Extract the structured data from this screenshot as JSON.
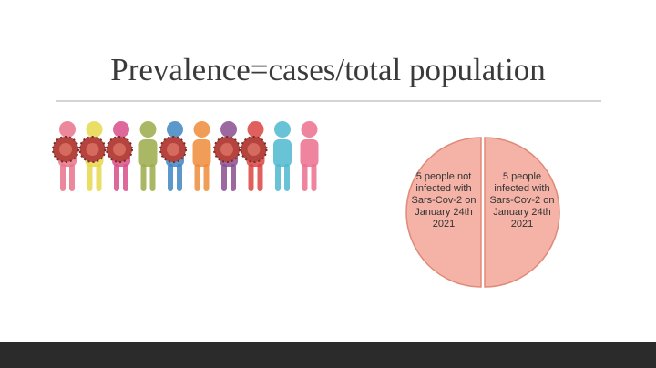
{
  "chart_data": {
    "type": "pie",
    "title": "Prevalence=cases/total population",
    "categories": [
      "5 people not infected with Sars-Cov-2 on January 24th 2021",
      "5 people infected with Sars-Cov-2 on January 24th 2021"
    ],
    "values": [
      5,
      5
    ],
    "colors": [
      "#f4b3a6",
      "#f4b3a6"
    ],
    "edge_color": "#e08a78"
  }
}
